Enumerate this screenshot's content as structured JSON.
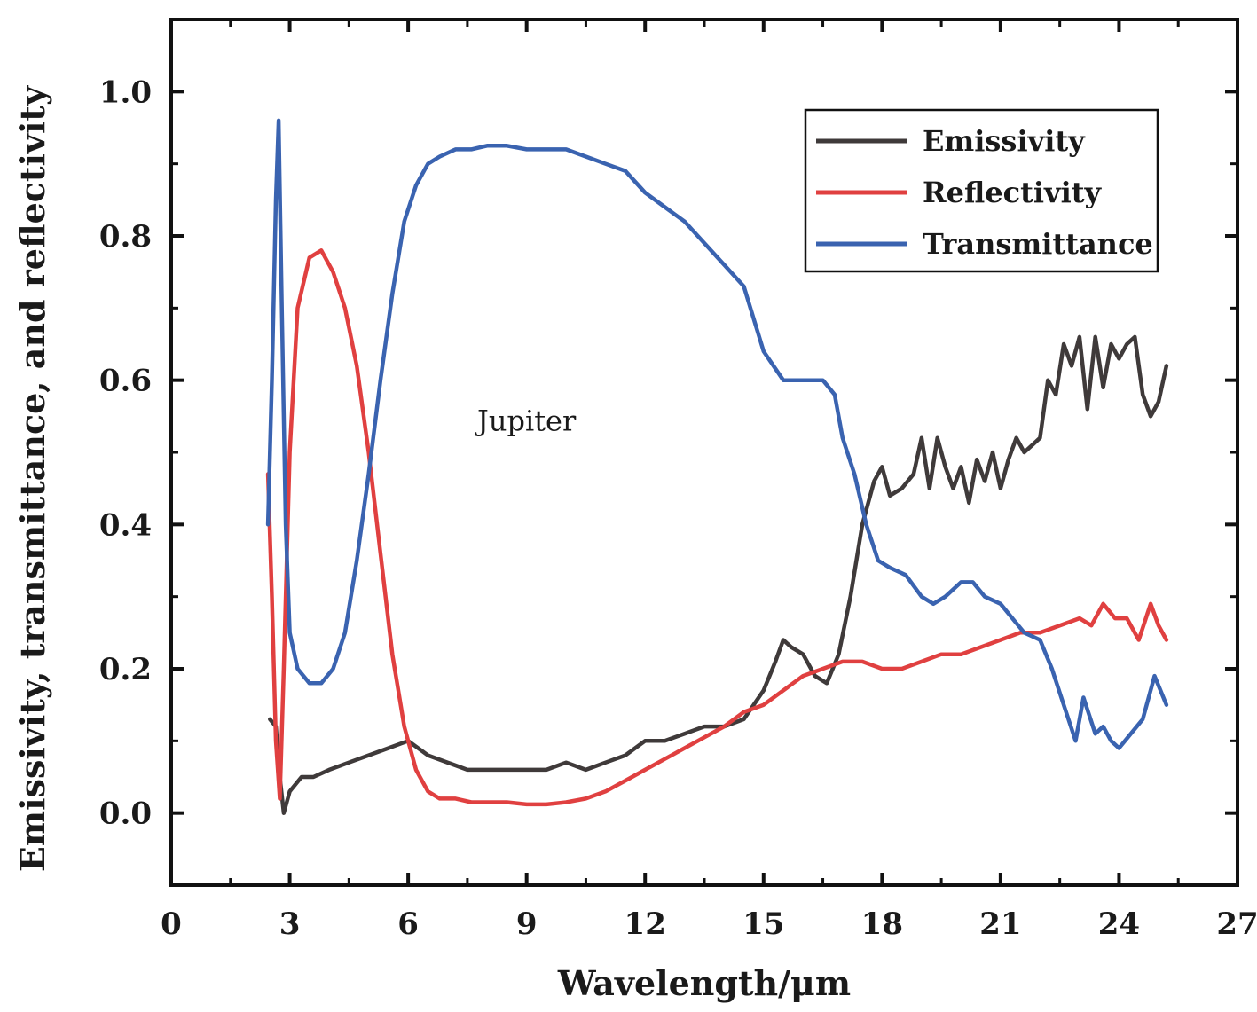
{
  "chart_data": {
    "type": "line",
    "xlabel": "Wavelength/μm",
    "ylabel": "Emissivity, transmittance, and reflectivity",
    "xlim": [
      0,
      27
    ],
    "ylim": [
      -0.1,
      1.1
    ],
    "xticks": [
      0,
      3,
      6,
      9,
      12,
      15,
      18,
      21,
      24,
      27
    ],
    "yticks": [
      0.0,
      0.2,
      0.4,
      0.6,
      0.8,
      1.0
    ],
    "xtick_labels": [
      "0",
      "3",
      "6",
      "9",
      "12",
      "15",
      "18",
      "21",
      "24",
      "27"
    ],
    "ytick_labels": [
      "0.0",
      "0.2",
      "0.4",
      "0.6",
      "0.8",
      "1.0"
    ],
    "grid": false,
    "legend_position": "top-right",
    "annotations": [
      {
        "text": "Jupiter",
        "x": 9.0,
        "y": 0.53
      }
    ],
    "series": [
      {
        "name": "Emissivity",
        "color": "#3f3a3a",
        "x": [
          2.5,
          2.65,
          2.75,
          2.85,
          3.0,
          3.3,
          3.6,
          4.0,
          4.5,
          5.0,
          5.5,
          6.0,
          6.5,
          7.0,
          7.5,
          8.0,
          8.5,
          9.0,
          9.5,
          10.0,
          10.5,
          11.0,
          11.5,
          12.0,
          12.5,
          13.0,
          13.5,
          14.0,
          14.5,
          15.0,
          15.3,
          15.5,
          15.7,
          16.0,
          16.3,
          16.6,
          16.9,
          17.2,
          17.5,
          17.8,
          18.0,
          18.2,
          18.5,
          18.8,
          19.0,
          19.2,
          19.4,
          19.6,
          19.8,
          20.0,
          20.2,
          20.4,
          20.6,
          20.8,
          21.0,
          21.2,
          21.4,
          21.6,
          21.8,
          22.0,
          22.2,
          22.4,
          22.6,
          22.8,
          23.0,
          23.2,
          23.4,
          23.6,
          23.8,
          24.0,
          24.2,
          24.4,
          24.6,
          24.8,
          25.0,
          25.2
        ],
        "values": [
          0.13,
          0.12,
          0.05,
          0.0,
          0.03,
          0.05,
          0.05,
          0.06,
          0.07,
          0.08,
          0.09,
          0.1,
          0.08,
          0.07,
          0.06,
          0.06,
          0.06,
          0.06,
          0.06,
          0.07,
          0.06,
          0.07,
          0.08,
          0.1,
          0.1,
          0.11,
          0.12,
          0.12,
          0.13,
          0.17,
          0.21,
          0.24,
          0.23,
          0.22,
          0.19,
          0.18,
          0.22,
          0.3,
          0.4,
          0.46,
          0.48,
          0.44,
          0.45,
          0.47,
          0.52,
          0.45,
          0.52,
          0.48,
          0.45,
          0.48,
          0.43,
          0.49,
          0.46,
          0.5,
          0.45,
          0.49,
          0.52,
          0.5,
          0.51,
          0.52,
          0.6,
          0.58,
          0.65,
          0.62,
          0.66,
          0.56,
          0.66,
          0.59,
          0.65,
          0.63,
          0.65,
          0.66,
          0.58,
          0.55,
          0.57,
          0.62
        ]
      },
      {
        "name": "Reflectivity",
        "color": "#e04040",
        "x": [
          2.45,
          2.55,
          2.65,
          2.75,
          2.85,
          3.0,
          3.2,
          3.5,
          3.8,
          4.1,
          4.4,
          4.7,
          5.0,
          5.3,
          5.6,
          5.9,
          6.2,
          6.5,
          6.8,
          7.2,
          7.6,
          8.0,
          8.5,
          9.0,
          9.5,
          10.0,
          10.5,
          11.0,
          11.5,
          12.0,
          12.5,
          13.0,
          13.5,
          14.0,
          14.5,
          15.0,
          15.5,
          16.0,
          16.5,
          17.0,
          17.5,
          18.0,
          18.5,
          19.0,
          19.5,
          20.0,
          20.5,
          21.0,
          21.5,
          22.0,
          22.5,
          23.0,
          23.3,
          23.6,
          23.9,
          24.2,
          24.5,
          24.8,
          25.0,
          25.2
        ],
        "values": [
          0.47,
          0.3,
          0.1,
          0.02,
          0.2,
          0.5,
          0.7,
          0.77,
          0.78,
          0.75,
          0.7,
          0.62,
          0.5,
          0.36,
          0.22,
          0.12,
          0.06,
          0.03,
          0.02,
          0.02,
          0.015,
          0.015,
          0.015,
          0.012,
          0.012,
          0.015,
          0.02,
          0.03,
          0.045,
          0.06,
          0.075,
          0.09,
          0.105,
          0.12,
          0.14,
          0.15,
          0.17,
          0.19,
          0.2,
          0.21,
          0.21,
          0.2,
          0.2,
          0.21,
          0.22,
          0.22,
          0.23,
          0.24,
          0.25,
          0.25,
          0.26,
          0.27,
          0.26,
          0.29,
          0.27,
          0.27,
          0.24,
          0.29,
          0.26,
          0.24
        ]
      },
      {
        "name": "Transmittance",
        "color": "#3a63b0",
        "x": [
          2.45,
          2.55,
          2.65,
          2.72,
          2.8,
          2.9,
          3.0,
          3.2,
          3.5,
          3.8,
          4.1,
          4.4,
          4.7,
          5.0,
          5.3,
          5.6,
          5.9,
          6.2,
          6.5,
          6.8,
          7.2,
          7.6,
          8.0,
          8.5,
          9.0,
          9.5,
          10.0,
          10.5,
          11.0,
          11.5,
          12.0,
          12.5,
          13.0,
          13.5,
          14.0,
          14.5,
          15.0,
          15.5,
          16.0,
          16.5,
          16.8,
          17.0,
          17.3,
          17.6,
          17.9,
          18.2,
          18.6,
          19.0,
          19.3,
          19.6,
          20.0,
          20.3,
          20.6,
          21.0,
          21.3,
          21.6,
          22.0,
          22.3,
          22.6,
          22.9,
          23.1,
          23.4,
          23.6,
          23.8,
          24.0,
          24.3,
          24.6,
          24.9,
          25.2
        ],
        "values": [
          0.4,
          0.6,
          0.85,
          0.96,
          0.7,
          0.4,
          0.25,
          0.2,
          0.18,
          0.18,
          0.2,
          0.25,
          0.35,
          0.47,
          0.6,
          0.72,
          0.82,
          0.87,
          0.9,
          0.91,
          0.92,
          0.92,
          0.925,
          0.925,
          0.92,
          0.92,
          0.92,
          0.91,
          0.9,
          0.89,
          0.86,
          0.84,
          0.82,
          0.79,
          0.76,
          0.73,
          0.64,
          0.6,
          0.6,
          0.6,
          0.58,
          0.52,
          0.47,
          0.4,
          0.35,
          0.34,
          0.33,
          0.3,
          0.29,
          0.3,
          0.32,
          0.32,
          0.3,
          0.29,
          0.27,
          0.25,
          0.24,
          0.2,
          0.15,
          0.1,
          0.16,
          0.11,
          0.12,
          0.1,
          0.09,
          0.11,
          0.13,
          0.19,
          0.15
        ]
      }
    ]
  }
}
